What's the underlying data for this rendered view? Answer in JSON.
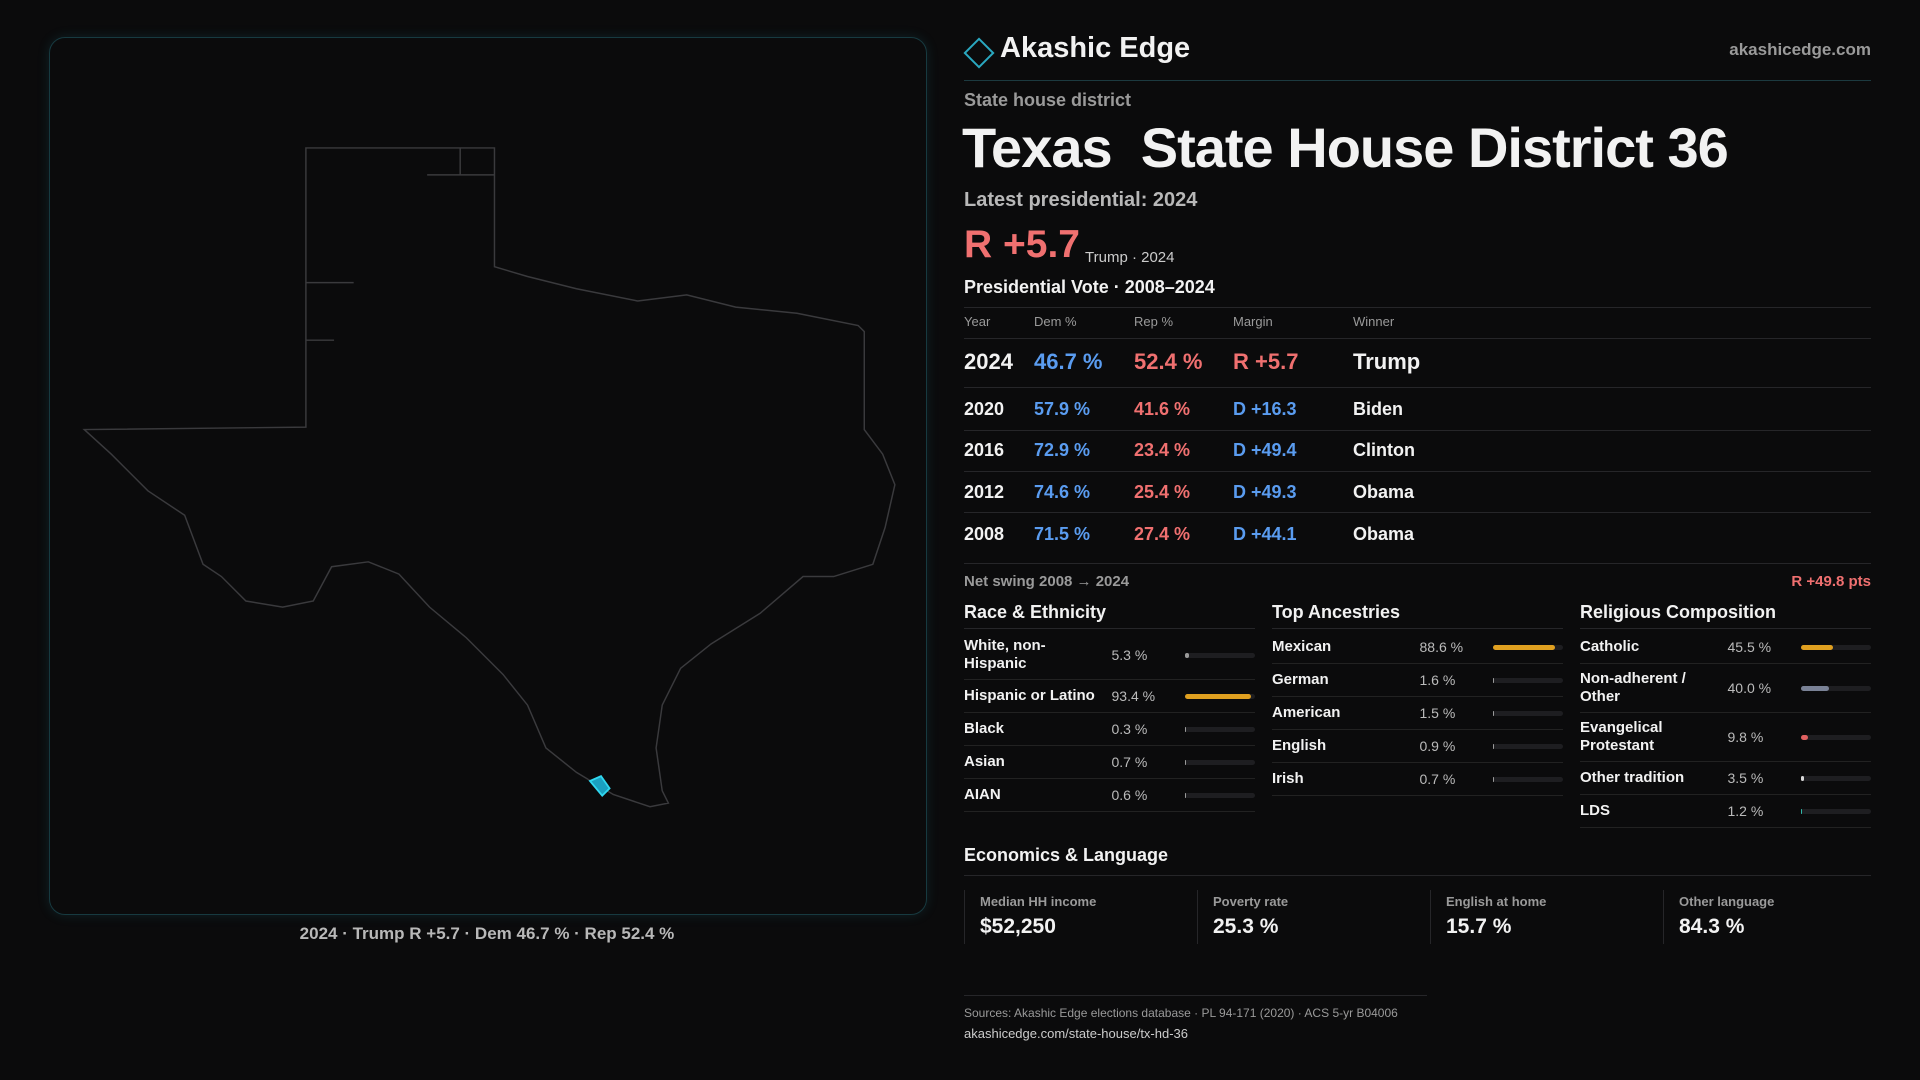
{
  "header": {
    "brand": "Akashic Edge",
    "site": "akashicedge.com"
  },
  "district": {
    "kind": "State house district",
    "state": "Texas",
    "name": "State House District 36",
    "latest": "Latest presidential: 2024",
    "margin": "R +5.7",
    "margin_note": "Trump · 2024"
  },
  "map": {
    "caption": "2024 · Trump R +5.7 · Dem 46.7 % · Rep 52.4 %"
  },
  "votes": {
    "title": "Presidential Vote · 2008–2024",
    "columns": [
      "Year",
      "Dem %",
      "Rep %",
      "Margin",
      "Winner"
    ],
    "rows": [
      [
        "2024",
        "46.7 %",
        "52.4 %",
        "R +5.7",
        "Trump"
      ],
      [
        "2020",
        "57.9 %",
        "41.6 %",
        "D +16.3",
        "Biden"
      ],
      [
        "2016",
        "72.9 %",
        "23.4 %",
        "D +49.4",
        "Clinton"
      ],
      [
        "2012",
        "74.6 %",
        "25.4 %",
        "D +49.3",
        "Obama"
      ],
      [
        "2008",
        "71.5 %",
        "27.4 %",
        "D +44.1",
        "Obama"
      ]
    ]
  },
  "swing": {
    "label": "Net swing 2008 → 2024",
    "value": "R +49.8 pts"
  },
  "demographics": [
    {
      "title": "Race & Ethnicity",
      "rows": [
        {
          "name": "White, non-Hispanic",
          "value": 5.3,
          "label": "5.3 %",
          "color": "#9a9a9a"
        },
        {
          "name": "Hispanic or Latino",
          "value": 93.4,
          "label": "93.4 %",
          "color": "#e0a020"
        },
        {
          "name": "Black",
          "value": 0.3,
          "label": "0.3 %",
          "color": "#9a9a9a"
        },
        {
          "name": "Asian",
          "value": 0.7,
          "label": "0.7 %",
          "color": "#9a9a9a"
        },
        {
          "name": "AIAN",
          "value": 0.6,
          "label": "0.6 %",
          "color": "#9a9a9a"
        }
      ]
    },
    {
      "title": "Top Ancestries",
      "rows": [
        {
          "name": "Mexican",
          "value": 88.6,
          "label": "88.6 %",
          "color": "#e0a020"
        },
        {
          "name": "German",
          "value": 1.6,
          "label": "1.6 %",
          "color": "#9a9a9a"
        },
        {
          "name": "American",
          "value": 1.5,
          "label": "1.5 %",
          "color": "#9a9a9a"
        },
        {
          "name": "English",
          "value": 0.9,
          "label": "0.9 %",
          "color": "#9a9a9a"
        },
        {
          "name": "Irish",
          "value": 0.7,
          "label": "0.7 %",
          "color": "#9a9a9a"
        }
      ]
    },
    {
      "title": "Religious Composition",
      "rows": [
        {
          "name": "Catholic",
          "value": 45.5,
          "label": "45.5 %",
          "color": "#e0a020"
        },
        {
          "name": "Non-adherent / Other",
          "value": 40.0,
          "label": "40.0 %",
          "color": "#7a8296"
        },
        {
          "name": "Evangelical Protestant",
          "value": 9.8,
          "label": "9.8 %",
          "color": "#e06060"
        },
        {
          "name": "Other tradition",
          "value": 3.5,
          "label": "3.5 %",
          "color": "#d8d8d8"
        },
        {
          "name": "LDS",
          "value": 1.2,
          "label": "1.2 %",
          "color": "#30b8a8"
        }
      ]
    }
  ],
  "economics": {
    "title": "Economics & Language",
    "items": [
      {
        "label": "Median HH income",
        "value": "$52,250"
      },
      {
        "label": "Poverty rate",
        "value": "25.3 %"
      },
      {
        "label": "English at home",
        "value": "15.7 %"
      },
      {
        "label": "Other language",
        "value": "84.3 %"
      }
    ]
  },
  "footer": {
    "sources": "Sources: Akashic Edge elections database · PL 94-171 (2020) · ACS 5-yr B04006",
    "url": "akashicedge.com/state-house/tx-hd-36"
  }
}
